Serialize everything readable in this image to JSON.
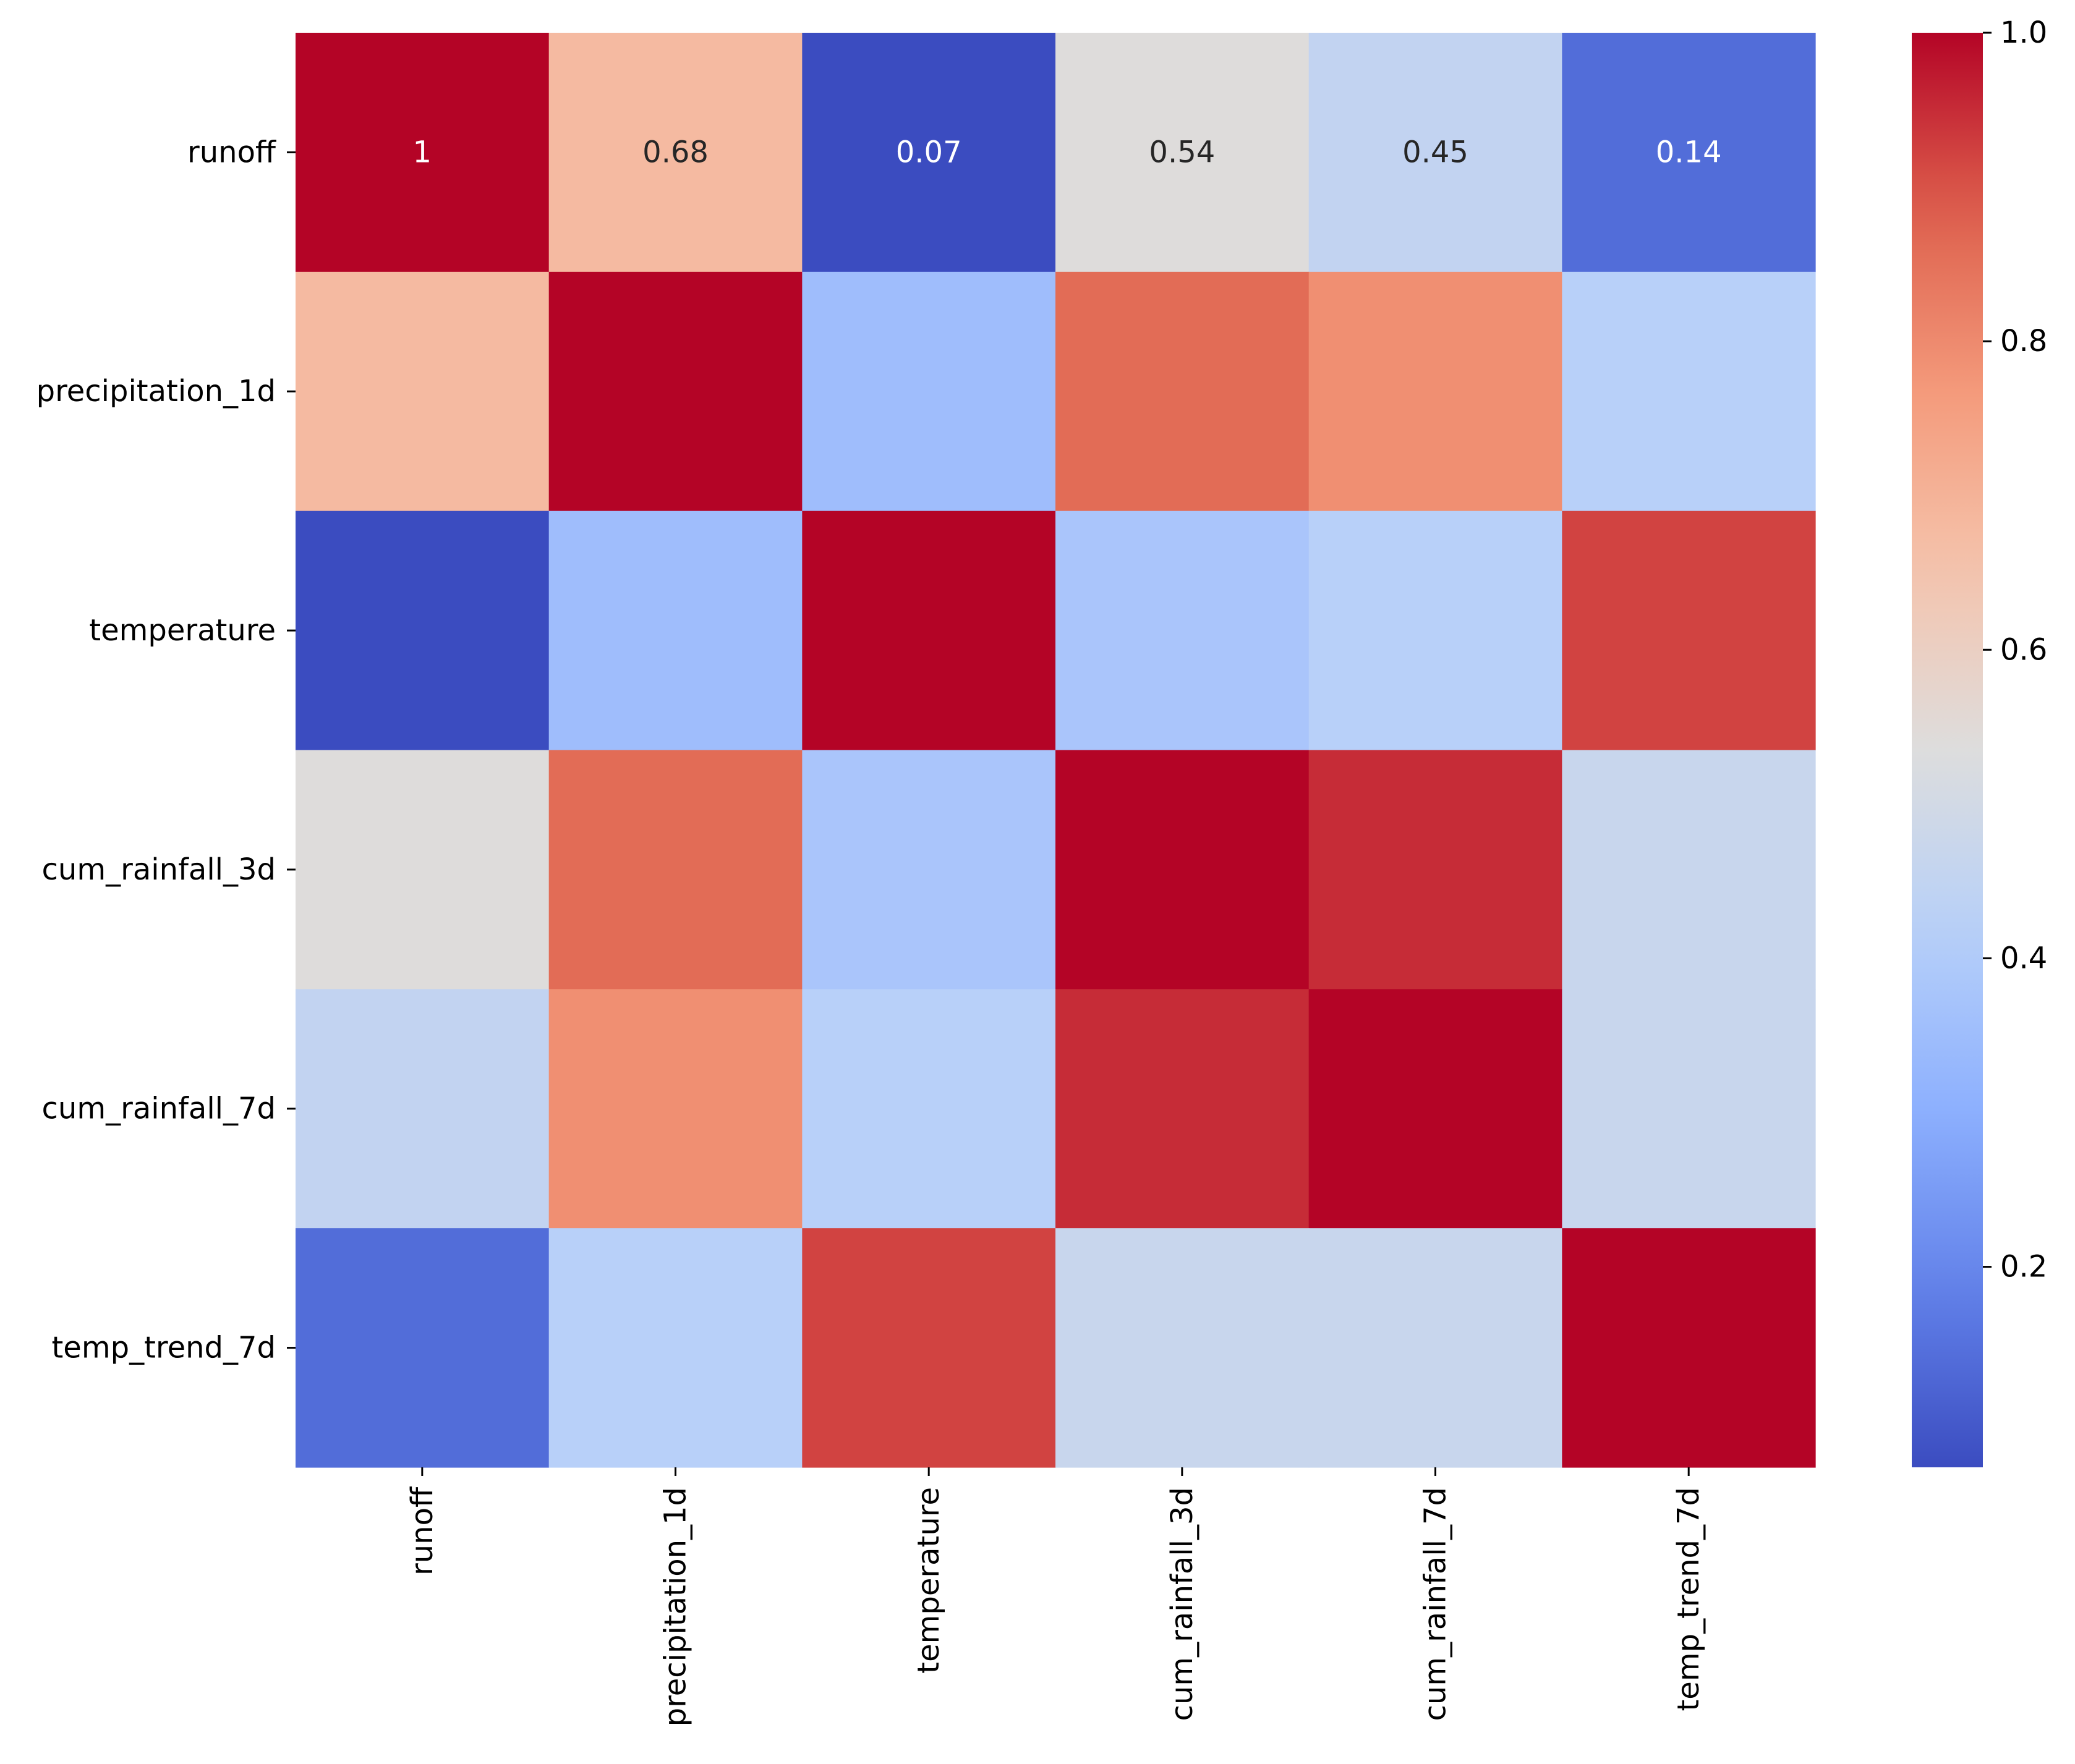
{
  "chart_data": {
    "type": "heatmap",
    "title": "",
    "xlabel": "",
    "ylabel": "",
    "colormap": "coolwarm",
    "row_labels": [
      "runoff",
      "precipitation_1d",
      "temperature",
      "cum_rainfall_3d",
      "cum_rainfall_7d",
      "temp_trend_7d"
    ],
    "column_labels": [
      "runoff",
      "precipitation_1d",
      "temperature",
      "cum_rainfall_3d",
      "cum_rainfall_7d",
      "temp_trend_7d"
    ],
    "values": [
      [
        1.0,
        0.68,
        0.07,
        0.54,
        0.45,
        0.14
      ],
      [
        0.68,
        1.0,
        0.35,
        0.86,
        0.79,
        0.42
      ],
      [
        0.07,
        0.35,
        1.0,
        0.38,
        0.42,
        0.92
      ],
      [
        0.54,
        0.86,
        0.38,
        1.0,
        0.95,
        0.47
      ],
      [
        0.45,
        0.79,
        0.42,
        0.95,
        1.0,
        0.47
      ],
      [
        0.14,
        0.42,
        0.92,
        0.47,
        0.47,
        1.0
      ]
    ],
    "annotations": [
      {
        "row": 0,
        "col": 0,
        "text": "1"
      },
      {
        "row": 0,
        "col": 1,
        "text": "0.68"
      },
      {
        "row": 0,
        "col": 2,
        "text": "0.07"
      },
      {
        "row": 0,
        "col": 3,
        "text": "0.54"
      },
      {
        "row": 0,
        "col": 4,
        "text": "0.45"
      },
      {
        "row": 0,
        "col": 5,
        "text": "0.14"
      }
    ],
    "colorbar": {
      "range": [
        0.07,
        1.0
      ],
      "ticks": [
        0.2,
        0.4,
        0.6,
        0.8,
        1.0
      ],
      "tick_labels": [
        "0.2",
        "0.4",
        "0.6",
        "0.8",
        "1.0"
      ],
      "position": "right"
    }
  }
}
